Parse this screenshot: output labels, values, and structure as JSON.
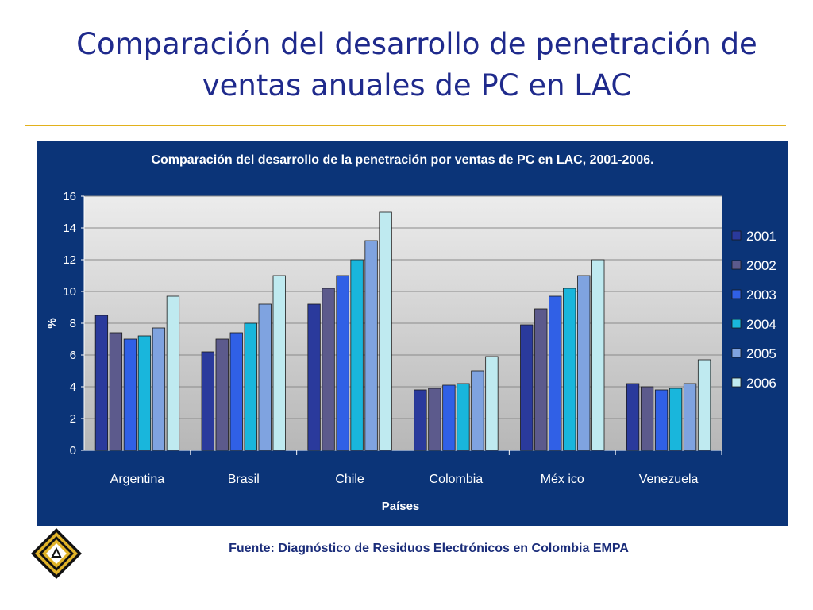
{
  "slide": {
    "title": "Comparación del desarrollo de penetración de ventas anuales de PC en LAC",
    "source": "Fuente: Diagnóstico de Residuos Electrónicos en Colombia EMPA",
    "logo_icon": "recycle-diamond-icon"
  },
  "colors": {
    "title": "#1f2a8c",
    "rule": "#e2b11c",
    "panel": "#0b3478"
  },
  "chart_data": {
    "type": "bar",
    "title": "Comparación del desarrollo de la penetración por ventas de PC en LAC, 2001-2006.",
    "xlabel": "Países",
    "ylabel": "%",
    "ylim": [
      0,
      16
    ],
    "yticks": [
      0,
      2,
      4,
      6,
      8,
      10,
      12,
      14,
      16
    ],
    "grid": true,
    "legend_position": "right",
    "categories": [
      "Argentina",
      "Brasil",
      "Chile",
      "Colombia",
      "Méx ico",
      "Venezuela"
    ],
    "series": [
      {
        "name": "2001",
        "color": "#2a3a9c",
        "values": [
          8.5,
          6.2,
          9.2,
          3.8,
          7.9,
          4.2
        ]
      },
      {
        "name": "2002",
        "color": "#5c5a8c",
        "values": [
          7.4,
          7.0,
          10.2,
          3.9,
          8.9,
          4.0
        ]
      },
      {
        "name": "2003",
        "color": "#3060e6",
        "values": [
          7.0,
          7.4,
          11.0,
          4.1,
          9.7,
          3.8
        ]
      },
      {
        "name": "2004",
        "color": "#19b6dc",
        "values": [
          7.2,
          8.0,
          12.0,
          4.2,
          10.2,
          3.9
        ]
      },
      {
        "name": "2005",
        "color": "#7fa3e0",
        "values": [
          7.7,
          9.2,
          13.2,
          5.0,
          11.0,
          4.2
        ]
      },
      {
        "name": "2006",
        "color": "#bfeaf0",
        "values": [
          9.7,
          11.0,
          15.0,
          5.9,
          12.0,
          5.7
        ]
      }
    ]
  }
}
